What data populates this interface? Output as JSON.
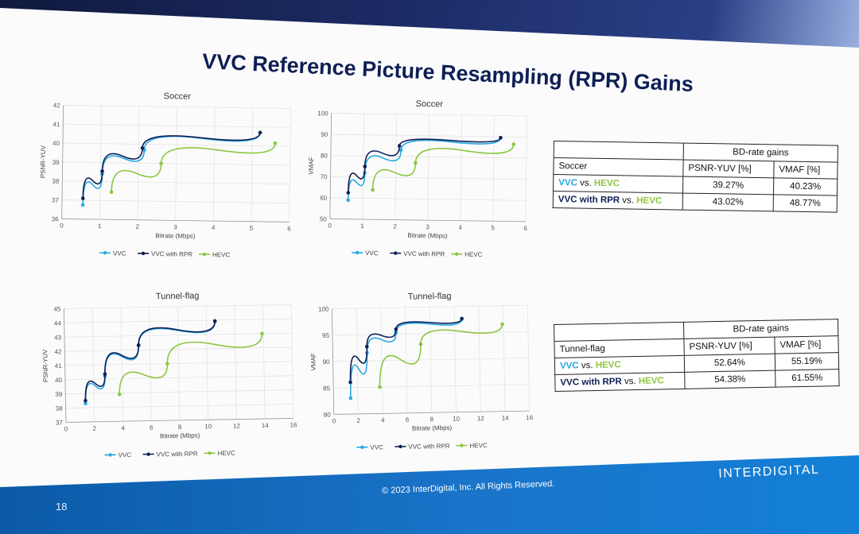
{
  "slide": {
    "title": "VVC Reference Picture Resampling (RPR) Gains",
    "copyright": "© 2023 InterDigital, Inc. All Rights Reserved.",
    "page_number": "18",
    "logo_text": "INTERDIGITAL"
  },
  "colors": {
    "vvc": "#27a9e1",
    "vvc_rpr": "#0f1f55",
    "hevc": "#8cc63f"
  },
  "chart_data": [
    {
      "id": "soccer-psnr",
      "type": "line",
      "title": "Soccer",
      "xlabel": "Bitrate (Mbps)",
      "ylabel": "PSNR-YUV",
      "xlim": [
        0,
        6
      ],
      "ylim": [
        36,
        42
      ],
      "xticks": [
        "0",
        "1",
        "2",
        "3",
        "4",
        "5",
        "6"
      ],
      "yticks": [
        "36",
        "37",
        "38",
        "39",
        "40",
        "41",
        "42"
      ],
      "series": [
        {
          "name": "VVC",
          "x": [
            0.55,
            1.05,
            2.15,
            5.2
          ],
          "y": [
            36.75,
            38.4,
            39.7,
            40.7
          ]
        },
        {
          "name": "VVC with RPR",
          "x": [
            0.55,
            1.05,
            2.1,
            5.2
          ],
          "y": [
            37.1,
            38.55,
            39.8,
            40.7
          ]
        },
        {
          "name": "HEVC",
          "x": [
            1.3,
            2.6,
            5.6
          ],
          "y": [
            37.45,
            39.0,
            40.15
          ]
        }
      ]
    },
    {
      "id": "soccer-vmaf",
      "type": "line",
      "title": "Soccer",
      "xlabel": "Bitrate (Mbps)",
      "ylabel": "VMAF",
      "xlim": [
        0,
        6
      ],
      "ylim": [
        50,
        100
      ],
      "xticks": [
        "0",
        "1",
        "2",
        "3",
        "4",
        "5",
        "6"
      ],
      "yticks": [
        "50",
        "60",
        "70",
        "80",
        "90",
        "100"
      ],
      "series": [
        {
          "name": "VVC",
          "x": [
            0.55,
            1.05,
            2.15,
            5.2
          ],
          "y": [
            59,
            72,
            83,
            89.5
          ]
        },
        {
          "name": "VVC with RPR",
          "x": [
            0.55,
            1.05,
            2.1,
            5.2
          ],
          "y": [
            62.5,
            75,
            85,
            89.5
          ]
        },
        {
          "name": "HEVC",
          "x": [
            1.3,
            2.6,
            5.6
          ],
          "y": [
            64,
            77,
            86.5
          ]
        }
      ]
    },
    {
      "id": "tunnel-psnr",
      "type": "line",
      "title": "Tunnel-flag",
      "xlabel": "Bitrate (Mbps)",
      "ylabel": "PSNR-YUV",
      "xlim": [
        0,
        16
      ],
      "ylim": [
        37,
        45
      ],
      "xticks": [
        "0",
        "2",
        "4",
        "6",
        "8",
        "10",
        "12",
        "14",
        "16"
      ],
      "yticks": [
        "37",
        "38",
        "39",
        "40",
        "41",
        "42",
        "43",
        "44",
        "45"
      ],
      "series": [
        {
          "name": "VVC",
          "x": [
            1.4,
            2.8,
            5.2,
            10.6
          ],
          "y": [
            38.3,
            40.2,
            42.3,
            43.9
          ]
        },
        {
          "name": "VVC with RPR",
          "x": [
            1.4,
            2.8,
            5.2,
            10.6
          ],
          "y": [
            38.5,
            40.35,
            42.35,
            43.95
          ]
        },
        {
          "name": "HEVC",
          "x": [
            3.8,
            7.2,
            13.9
          ],
          "y": [
            38.9,
            41.0,
            43.0
          ]
        }
      ]
    },
    {
      "id": "tunnel-vmaf",
      "type": "line",
      "title": "Tunnel-flag",
      "xlabel": "Bitrate (Mbps)",
      "ylabel": "VMAF",
      "xlim": [
        0,
        16
      ],
      "ylim": [
        80,
        100
      ],
      "xticks": [
        "0",
        "2",
        "4",
        "6",
        "8",
        "10",
        "12",
        "14",
        "16"
      ],
      "yticks": [
        "80",
        "85",
        "90",
        "95",
        "100"
      ],
      "series": [
        {
          "name": "VVC",
          "x": [
            1.4,
            2.8,
            5.2,
            10.6
          ],
          "y": [
            83,
            91.5,
            95.3,
            97.6
          ]
        },
        {
          "name": "VVC with RPR",
          "x": [
            1.4,
            2.8,
            5.2,
            10.6
          ],
          "y": [
            86,
            92.7,
            95.9,
            97.7
          ]
        },
        {
          "name": "HEVC",
          "x": [
            3.8,
            7.2,
            13.9
          ],
          "y": [
            85,
            93,
            96.5
          ]
        }
      ]
    }
  ],
  "tables": {
    "soccer": {
      "header": "BD-rate gains",
      "columns": [
        "Soccer",
        "PSNR-YUV [%]",
        "VMAF [%]"
      ],
      "rows": [
        {
          "a": "VVC",
          "vs": " vs. ",
          "b": "HEVC",
          "psnr": "39.27%",
          "vmaf": "40.23%"
        },
        {
          "a": "VVC with RPR",
          "vs": " vs. ",
          "b": "HEVC",
          "psnr": "43.02%",
          "vmaf": "48.77%"
        }
      ]
    },
    "tunnel": {
      "header": "BD-rate gains",
      "columns": [
        "Tunnel-flag",
        "PSNR-YUV [%]",
        "VMAF [%]"
      ],
      "rows": [
        {
          "a": "VVC",
          "vs": " vs. ",
          "b": "HEVC",
          "psnr": "52.64%",
          "vmaf": "55.19%"
        },
        {
          "a": "VVC with RPR",
          "vs": " vs. ",
          "b": "HEVC",
          "psnr": "54.38%",
          "vmaf": "61.55%"
        }
      ]
    }
  }
}
